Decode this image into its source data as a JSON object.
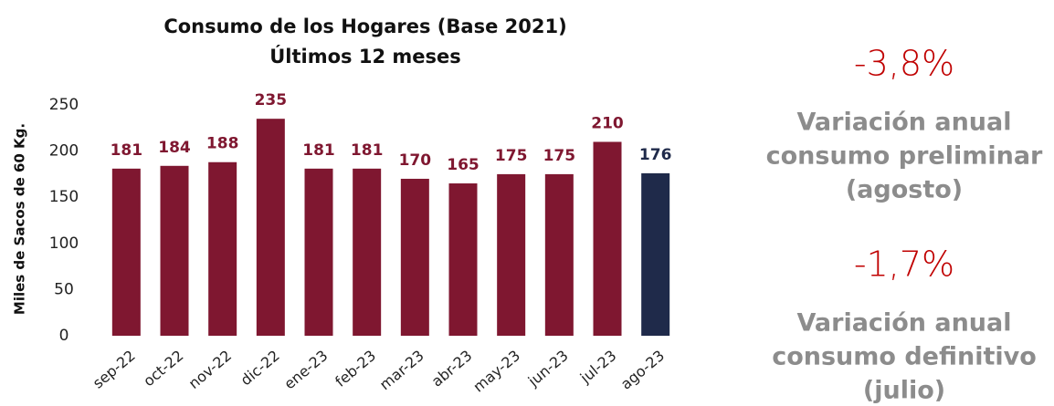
{
  "chart_data": {
    "type": "bar",
    "title": [
      "Consumo de los Hogares (Base 2021)",
      "Últimos 12 meses"
    ],
    "y_axis_label": "Miles de Sacos de 60 Kg.",
    "categories": [
      "sep-22",
      "oct-22",
      "nov-22",
      "dic-22",
      "ene-23",
      "feb-23",
      "mar-23",
      "abr-23",
      "may-23",
      "jun-23",
      "jul-23",
      "ago-23"
    ],
    "values": [
      181,
      184,
      188,
      235,
      181,
      181,
      170,
      165,
      175,
      175,
      210,
      176
    ],
    "colors": [
      "#7f1730",
      "#7f1730",
      "#7f1730",
      "#7f1730",
      "#7f1730",
      "#7f1730",
      "#7f1730",
      "#7f1730",
      "#7f1730",
      "#7f1730",
      "#7f1730",
      "#1f2a4a"
    ],
    "ylim": [
      0,
      250
    ],
    "yticks": [
      0,
      50,
      100,
      150,
      200,
      250
    ],
    "grid": false
  },
  "side_panel": [
    {
      "value": "-3,8%",
      "label": [
        "Variación anual",
        "consumo preliminar",
        "(agosto)"
      ]
    },
    {
      "value": "-1,7%",
      "label": [
        "Variación anual",
        "consumo definitivo",
        "(julio)"
      ]
    }
  ]
}
